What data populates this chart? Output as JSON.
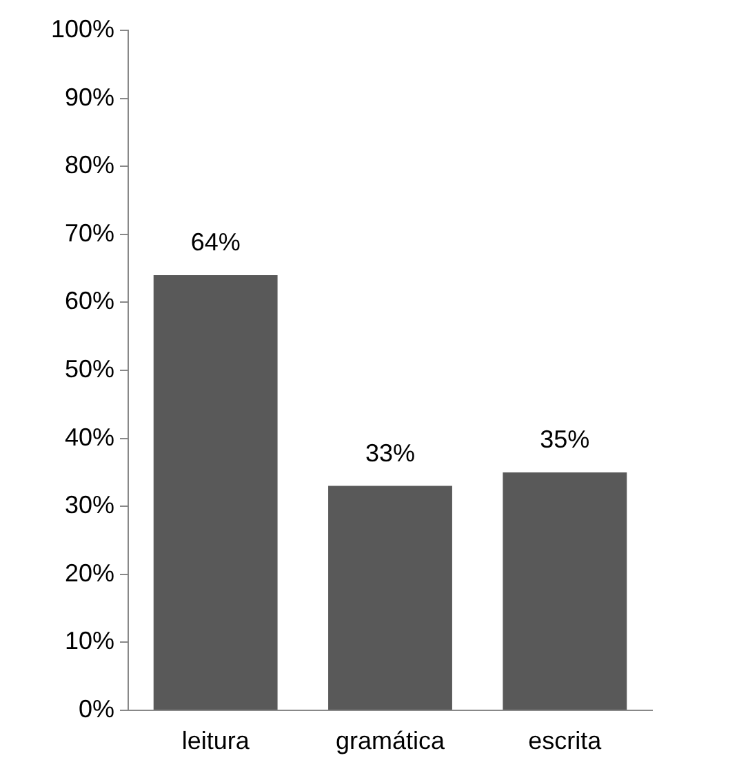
{
  "chart_data": {
    "type": "bar",
    "categories": [
      "leitura",
      "gramática",
      "escrita"
    ],
    "values": [
      64,
      33,
      35
    ],
    "color": "#595959",
    "value_labels": [
      "64%",
      "33%",
      "35%"
    ],
    "ylim": [
      0,
      100
    ],
    "yticks": [
      {
        "value": 0,
        "label": "0%"
      },
      {
        "value": 10,
        "label": "10%"
      },
      {
        "value": 20,
        "label": "20%"
      },
      {
        "value": 30,
        "label": "30%"
      },
      {
        "value": 40,
        "label": "40%"
      },
      {
        "value": 50,
        "label": "50%"
      },
      {
        "value": 60,
        "label": "60%"
      },
      {
        "value": 70,
        "label": "70%"
      },
      {
        "value": 80,
        "label": "80%"
      },
      {
        "value": 90,
        "label": "90%"
      },
      {
        "value": 100,
        "label": "100%"
      }
    ],
    "grid": false,
    "legend": false
  }
}
